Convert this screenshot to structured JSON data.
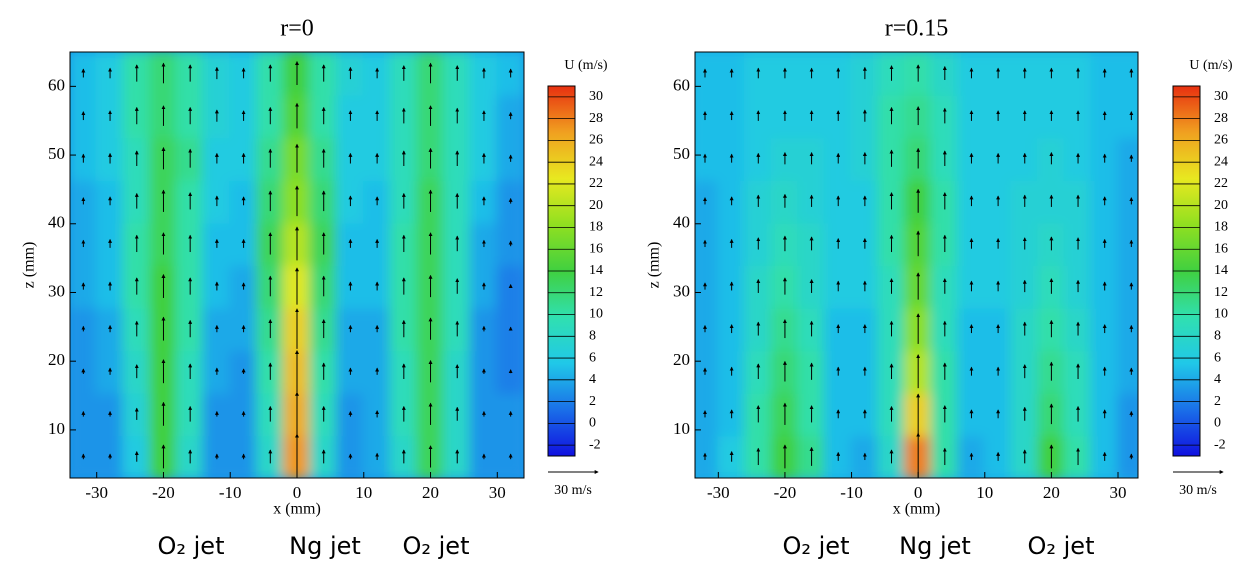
{
  "chart_data": [
    {
      "type": "contour",
      "title": "r=0",
      "x_label": "x (mm)",
      "y_label": "z (mm)",
      "xlim": [
        -34,
        34
      ],
      "ylim": [
        3,
        65
      ],
      "xticks": [
        -30,
        -20,
        -10,
        0,
        10,
        20,
        30
      ],
      "yticks": [
        10,
        20,
        30,
        40,
        50,
        60
      ],
      "x": [
        -32,
        -28,
        -24,
        -20,
        -16,
        -12,
        -8,
        -4,
        0,
        4,
        8,
        12,
        16,
        20,
        24,
        28,
        32
      ],
      "z": [
        6.1,
        12.3,
        18.5,
        24.7,
        30.9,
        37.1,
        43.3,
        49.5,
        55.7,
        61.9
      ],
      "values": [
        [
          3,
          3,
          6,
          14,
          8,
          3,
          3,
          8,
          27,
          8,
          3,
          4,
          8,
          13,
          8,
          3,
          3
        ],
        [
          3,
          3,
          7,
          14,
          9,
          3,
          3,
          9,
          26,
          9,
          3,
          4,
          9,
          13,
          8,
          3,
          3
        ],
        [
          3,
          4,
          8,
          14,
          9,
          4,
          3,
          10,
          25,
          10,
          4,
          4,
          9,
          13,
          8,
          3,
          2
        ],
        [
          3,
          4,
          9,
          14,
          10,
          4,
          4,
          11,
          24,
          11,
          4,
          4,
          10,
          13,
          9,
          3,
          2
        ],
        [
          4,
          5,
          10,
          14,
          10,
          5,
          4,
          12,
          22,
          12,
          5,
          5,
          10,
          13,
          9,
          4,
          2
        ],
        [
          4,
          5,
          10,
          13,
          10,
          5,
          5,
          13,
          20,
          13,
          5,
          5,
          10,
          13,
          9,
          4,
          3
        ],
        [
          4,
          5,
          9,
          13,
          10,
          6,
          5,
          12,
          18,
          12,
          6,
          5,
          9,
          13,
          9,
          5,
          3
        ],
        [
          5,
          6,
          9,
          13,
          11,
          6,
          6,
          11,
          17,
          11,
          6,
          6,
          9,
          12,
          9,
          6,
          4
        ],
        [
          5,
          6,
          10,
          12,
          10,
          7,
          6,
          10,
          15,
          10,
          6,
          6,
          9,
          12,
          9,
          6,
          4
        ],
        [
          5,
          6,
          10,
          12,
          10,
          7,
          6,
          10,
          14,
          10,
          7,
          6,
          9,
          12,
          9,
          6,
          5
        ]
      ],
      "colorbar_label": "U (m/s)",
      "clim": [
        -3,
        31
      ],
      "cticks": [
        -2,
        0,
        2,
        4,
        6,
        8,
        10,
        12,
        14,
        16,
        18,
        20,
        22,
        24,
        26,
        28,
        30
      ],
      "colors": [
        "#1010e0",
        "#1a6fe8",
        "#20c8e8",
        "#30e0b0",
        "#40d040",
        "#90e020",
        "#e8e820",
        "#f0a020",
        "#e83010"
      ],
      "vector_scale": {
        "value": 30,
        "label": "30 m/s"
      },
      "annotations": [
        "O₂ jet",
        "Ng jet",
        "O₂ jet"
      ]
    },
    {
      "type": "contour",
      "title": "r=0.15",
      "x_label": "x (mm)",
      "y_label": "z (mm)",
      "xlim": [
        -33.5,
        33
      ],
      "ylim": [
        3,
        65
      ],
      "xticks": [
        -30,
        -20,
        -10,
        0,
        10,
        20,
        30
      ],
      "yticks": [
        10,
        20,
        30,
        40,
        50,
        60
      ],
      "x": [
        -32,
        -28,
        -24,
        -20,
        -16,
        -12,
        -8,
        -4,
        0,
        4,
        8,
        12,
        16,
        20,
        24,
        28,
        32
      ],
      "z": [
        6.1,
        12.3,
        18.5,
        24.7,
        30.9,
        37.1,
        43.3,
        49.5,
        55.7,
        61.9
      ],
      "values": [
        [
          4,
          6,
          10,
          14,
          11,
          5,
          4,
          8,
          28,
          10,
          4,
          5,
          8,
          14,
          10,
          5,
          3
        ],
        [
          4,
          5,
          10,
          13,
          10,
          5,
          5,
          9,
          24,
          10,
          5,
          5,
          8,
          12,
          9,
          5,
          3
        ],
        [
          4,
          5,
          9,
          12,
          10,
          5,
          5,
          9,
          20,
          10,
          5,
          5,
          8,
          11,
          9,
          5,
          4
        ],
        [
          4,
          5,
          8,
          11,
          9,
          5,
          5,
          9,
          18,
          9,
          5,
          5,
          8,
          10,
          8,
          5,
          4
        ],
        [
          4,
          5,
          8,
          10,
          8,
          6,
          6,
          9,
          16,
          9,
          6,
          6,
          7,
          9,
          7,
          5,
          4
        ],
        [
          4,
          5,
          7,
          9,
          8,
          6,
          6,
          10,
          15,
          10,
          6,
          6,
          7,
          8,
          7,
          5,
          4
        ],
        [
          4,
          5,
          7,
          8,
          7,
          6,
          6,
          10,
          14,
          10,
          6,
          6,
          7,
          7,
          7,
          5,
          4
        ],
        [
          5,
          5,
          6,
          7,
          7,
          6,
          7,
          10,
          12,
          9,
          6,
          6,
          6,
          7,
          6,
          5,
          4
        ],
        [
          5,
          5,
          6,
          6,
          6,
          6,
          7,
          10,
          11,
          9,
          6,
          6,
          6,
          6,
          6,
          5,
          5
        ],
        [
          5,
          5,
          6,
          6,
          6,
          6,
          7,
          9,
          10,
          8,
          6,
          6,
          6,
          6,
          6,
          5,
          5
        ]
      ],
      "colorbar_label": "U (m/s)",
      "clim": [
        -3,
        31
      ],
      "cticks": [
        -2,
        0,
        2,
        4,
        6,
        8,
        10,
        12,
        14,
        16,
        18,
        20,
        22,
        24,
        26,
        28,
        30
      ],
      "colors": [
        "#1010e0",
        "#1a6fe8",
        "#20c8e8",
        "#30e0b0",
        "#40d040",
        "#90e020",
        "#e8e820",
        "#f0a020",
        "#e83010"
      ],
      "vector_scale": {
        "value": 30,
        "label": "30 m/s"
      },
      "annotations": [
        "O₂ jet",
        "Ng jet",
        "O₂ jet"
      ]
    }
  ]
}
